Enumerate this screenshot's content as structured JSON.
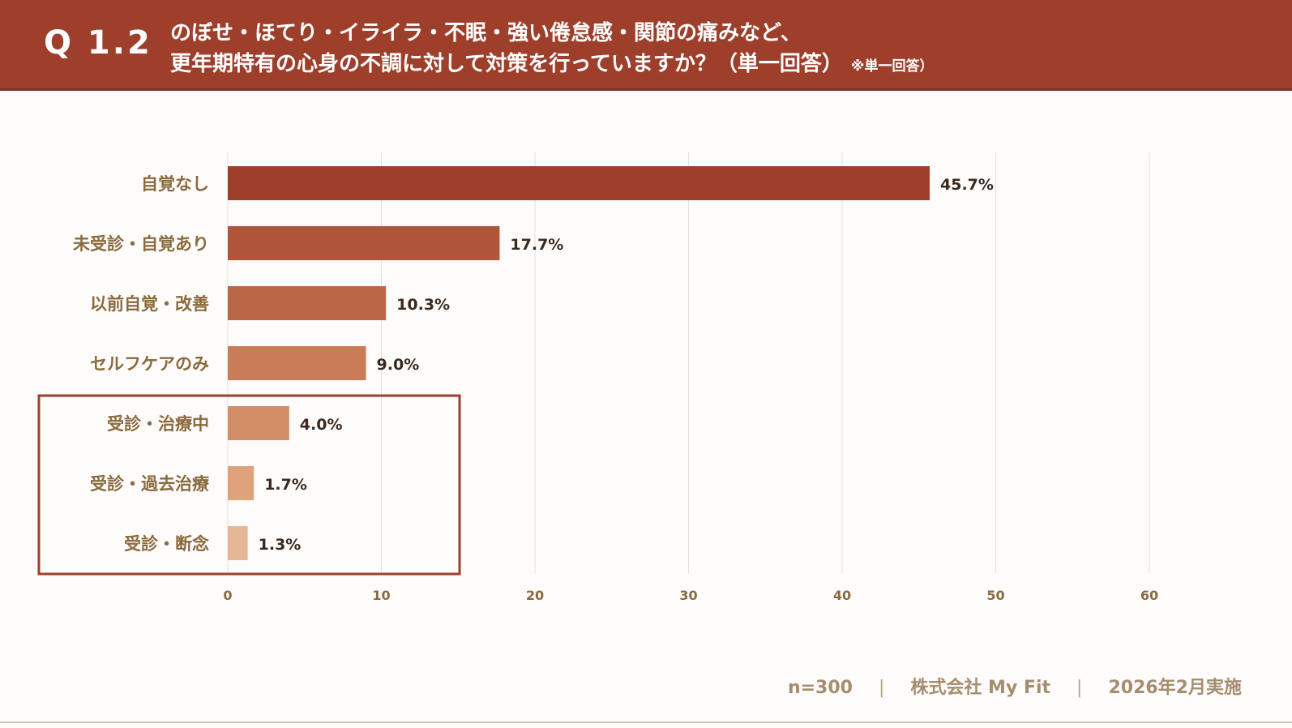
{
  "header": {
    "q_label": "Q 1.2",
    "line1": "のぼせ・ほてり・イライラ・不眠・強い倦怠感・関節の痛みなど、",
    "line2": "更年期特有の心身の不調に対して対策を行っていますか？（単一回答）",
    "note": "※単一回答）"
  },
  "chart_data": {
    "type": "bar",
    "orientation": "horizontal",
    "categories": [
      "自覚なし",
      "未受診・自覚あり",
      "以前自覚・改善",
      "セルフケアのみ",
      "受診・治療中",
      "受診・過去治療",
      "受診・断念"
    ],
    "values": [
      45.7,
      17.7,
      10.3,
      9.0,
      4.0,
      1.7,
      1.3
    ],
    "value_labels": [
      "45.7%",
      "17.7%",
      "10.3%",
      "9.0%",
      "4.0%",
      "1.7%",
      "1.3%"
    ],
    "xticks": [
      "0",
      "10",
      "20",
      "30",
      "40",
      "50",
      "60"
    ],
    "xlim": [
      0,
      60
    ],
    "grid": true,
    "bar_colors": [
      "#9e3f2c",
      "#b0553a",
      "#bc6648",
      "#c97c57",
      "#d28e66",
      "#dfa27b",
      "#e6b796"
    ],
    "highlight_box_categories": [
      "受診・治療中",
      "受診・過去治療",
      "受診・断念"
    ],
    "highlight_color": "#9e3f2c"
  },
  "footer": {
    "n": "n=300",
    "company": "株式会社 My Fit",
    "date": "2026年2月実施",
    "separator": "|"
  }
}
